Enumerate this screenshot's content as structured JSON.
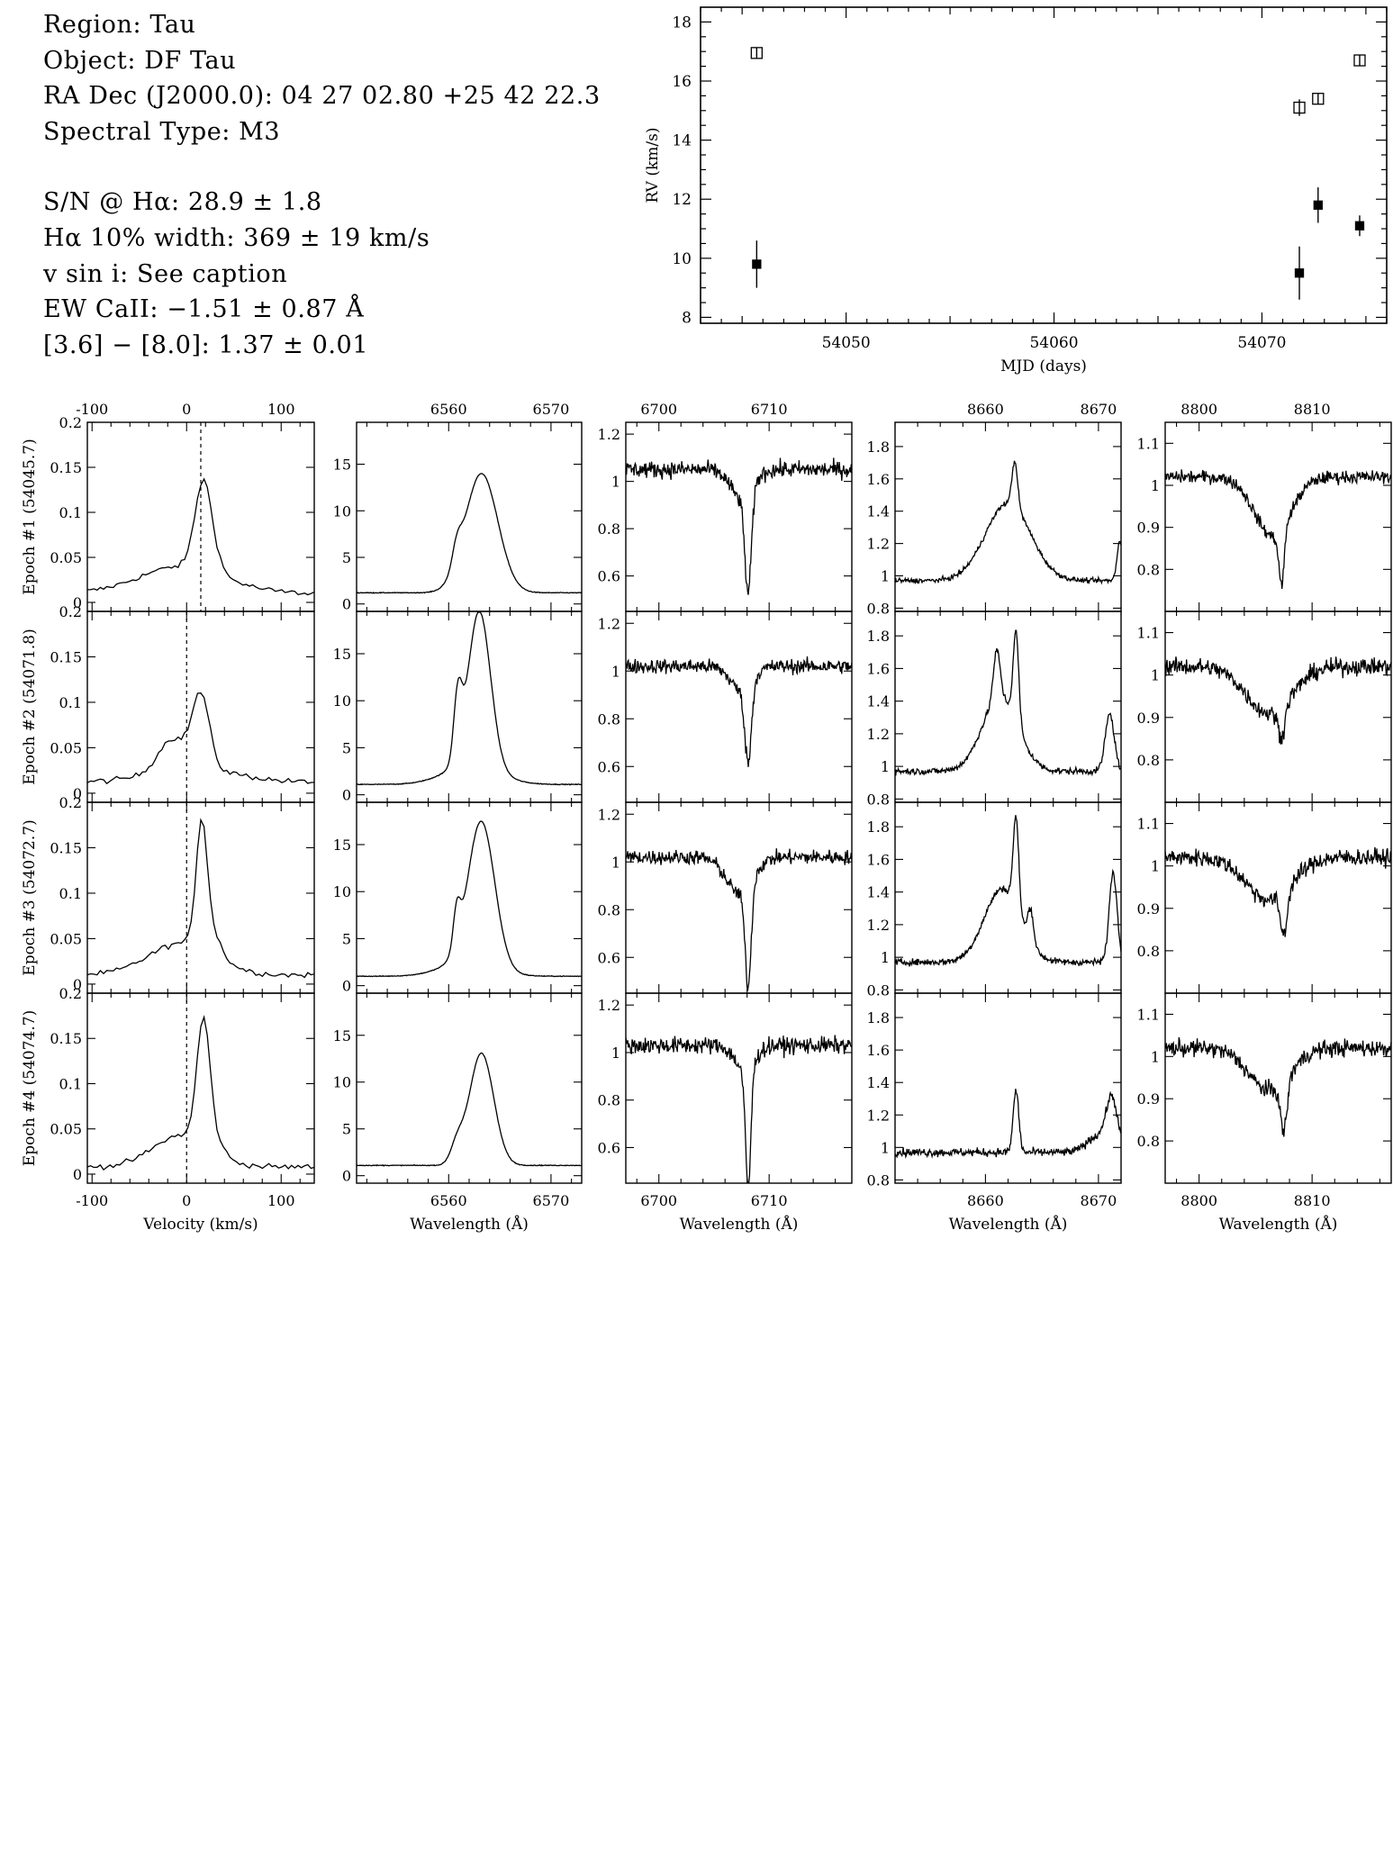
{
  "info": {
    "lines_top": [
      "Region: Tau",
      "Object: DF Tau",
      "RA Dec (J2000.0): 04 27 02.80 +25 42 22.3",
      "Spectral Type: M3"
    ],
    "lines_bottom": [
      "S/N @ Hα: 28.9 ± 1.8",
      "Hα 10% width: 369 ± 19 km/s",
      "v sin i: See caption",
      "EW CaII: −1.51 ± 0.87 Å",
      "[3.6] − [8.0]: 1.37 ± 0.01"
    ]
  },
  "chart_data": [
    {
      "type": "scatter",
      "xlabel": "MJD (days)",
      "ylabel": "RV (km/s)",
      "xlim": [
        54043,
        54076
      ],
      "ylim": [
        7.8,
        18.5
      ],
      "xticks": [
        54050,
        54060,
        54070
      ],
      "yticks": [
        8,
        10,
        12,
        14,
        16,
        18
      ],
      "series": [
        {
          "marker": "open-square",
          "x": [
            54045.7,
            54071.8,
            54072.7,
            54074.7
          ],
          "y": [
            16.95,
            15.1,
            15.4,
            16.7
          ],
          "err": [
            0.18,
            0.28,
            0.18,
            0.18
          ]
        },
        {
          "marker": "filled-square",
          "x": [
            54045.7,
            54071.8,
            54072.7,
            54074.7
          ],
          "y": [
            9.8,
            9.5,
            11.8,
            11.1
          ],
          "err": [
            0.8,
            0.9,
            0.6,
            0.35
          ]
        }
      ]
    },
    {
      "type": "line",
      "rows": [
        "Epoch #1 (54045.7)",
        "Epoch #2 (54071.8)",
        "Epoch #3 (54072.7)",
        "Epoch #4 (54074.7)"
      ],
      "panels": [
        {
          "xlabel": "Velocity (km/s)",
          "xlim": [
            -105,
            135
          ],
          "xticks": [
            -100,
            0,
            100
          ],
          "ylim": [
            -0.01,
            0.2
          ],
          "yticks": [
            0,
            0.05,
            0.1,
            0.15,
            0.2
          ],
          "ytick_labels": [
            "0",
            "0.05",
            "0.1",
            "0.15",
            "0.2"
          ],
          "dashed_x": [
            15,
            0,
            0,
            0
          ],
          "features": [
            {
              "base": 0.01,
              "noise": 0.003,
              "g": [
                [
                  -5,
                  45,
                  0.03
                ],
                [
                  18,
                  9,
                  0.1
                ],
                [
                  35,
                  6,
                  0.005
                ]
              ]
            },
            {
              "base": 0.012,
              "noise": 0.003,
              "g": [
                [
                  -15,
                  15,
                  0.035
                ],
                [
                  15,
                  9,
                  0.08
                ],
                [
                  8,
                  45,
                  0.015
                ]
              ]
            },
            {
              "base": 0.01,
              "noise": 0.003,
              "g": [
                [
                  -5,
                  35,
                  0.035
                ],
                [
                  16,
                  6,
                  0.14
                ],
                [
                  30,
                  8,
                  0.02
                ]
              ]
            },
            {
              "base": 0.008,
              "noise": 0.003,
              "g": [
                [
                  -5,
                  30,
                  0.035
                ],
                [
                  18,
                  7,
                  0.14
                ],
                [
                  35,
                  6,
                  0.01
                ]
              ]
            }
          ]
        },
        {
          "xlabel": "Wavelength (Å)",
          "xlim": [
            6551,
            6573
          ],
          "xticks": [
            6560,
            6570
          ],
          "ylim": [
            -0.8,
            19.5
          ],
          "yticks": [
            0,
            5,
            10,
            15
          ],
          "ytick_labels": [
            "0",
            "5",
            "10",
            "15"
          ],
          "rows": [
            {
              "ylim": [
                -0.8,
                19.5
              ],
              "base": 1.2,
              "noise": 0.04,
              "g": [
                [
                  6563.2,
                  1.6,
                  12.8
                ],
                [
                  6560.8,
                  0.45,
                  2.2
                ]
              ]
            },
            {
              "ylim": [
                -0.8,
                19.5
              ],
              "base": 1.1,
              "noise": 0.04,
              "g": [
                [
                  6563.0,
                  1.1,
                  16.5
                ],
                [
                  6560.9,
                  0.4,
                  6.6
                ],
                [
                  6562.2,
                  2.6,
                  2.0
                ]
              ]
            },
            {
              "ylim": [
                -0.8,
                19.5
              ],
              "base": 1.0,
              "noise": 0.04,
              "g": [
                [
                  6563.2,
                  1.3,
                  15.2
                ],
                [
                  6560.8,
                  0.35,
                  4.0
                ],
                [
                  6561.8,
                  2.5,
                  1.5
                ]
              ]
            },
            {
              "ylim": [
                -0.8,
                19.5
              ],
              "base": 1.1,
              "noise": 0.04,
              "g": [
                [
                  6563.2,
                  1.2,
                  12.0
                ],
                [
                  6560.8,
                  0.6,
                  1.9
                ]
              ]
            }
          ]
        },
        {
          "xlabel": "Wavelength (Å)",
          "xlim": [
            6697,
            6717.5
          ],
          "xticks": [
            6700,
            6710
          ],
          "yticks": [
            0.6,
            0.8,
            1,
            1.2
          ],
          "ytick_labels": [
            "0.6",
            "0.8",
            "1",
            "1.2"
          ],
          "rows": [
            {
              "ylim": [
                0.45,
                1.25
              ],
              "base": 1.05,
              "noise": 0.035,
              "g": [
                [
                  6708.1,
                  0.3,
                  -0.42
                ],
                [
                  6707.5,
                  1.0,
                  -0.12
                ]
              ]
            },
            {
              "ylim": [
                0.45,
                1.25
              ],
              "base": 1.02,
              "noise": 0.03,
              "g": [
                [
                  6708.1,
                  0.3,
                  -0.32
                ],
                [
                  6707.5,
                  1.0,
                  -0.1
                ]
              ]
            },
            {
              "ylim": [
                0.45,
                1.25
              ],
              "base": 1.02,
              "noise": 0.03,
              "g": [
                [
                  6708.1,
                  0.28,
                  -0.42
                ],
                [
                  6707.3,
                  1.2,
                  -0.15
                ]
              ]
            },
            {
              "ylim": [
                0.45,
                1.25
              ],
              "base": 1.03,
              "noise": 0.035,
              "g": [
                [
                  6708.1,
                  0.25,
                  -0.5
                ],
                [
                  6707.8,
                  0.9,
                  -0.1
                ]
              ]
            }
          ]
        },
        {
          "xlabel": "Wavelength (Å)",
          "xlim": [
            8652,
            8672
          ],
          "xticks": [
            8660,
            8670
          ],
          "yticks": [
            0.8,
            1,
            1.2,
            1.4,
            1.6,
            1.8
          ],
          "ytick_labels": [
            "0.8",
            "1",
            "1.2",
            "1.4",
            "1.6",
            "1.8"
          ],
          "rows": [
            {
              "ylim": [
                0.78,
                1.95
              ],
              "base": 0.97,
              "noise": 0.015,
              "g": [
                [
                  8662.0,
                  2.0,
                  0.48
                ],
                [
                  8662.6,
                  0.25,
                  0.28
                ],
                [
                  8671.9,
                  0.25,
                  0.25
                ]
              ]
            },
            {
              "ylim": [
                0.78,
                1.95
              ],
              "base": 0.97,
              "noise": 0.02,
              "g": [
                [
                  8661.3,
                  1.6,
                  0.45
                ],
                [
                  8661.0,
                  0.3,
                  0.3
                ],
                [
                  8662.7,
                  0.25,
                  0.55
                ],
                [
                  8671.0,
                  0.4,
                  0.35
                ]
              ]
            },
            {
              "ylim": [
                0.78,
                1.95
              ],
              "base": 0.97,
              "noise": 0.02,
              "g": [
                [
                  8661.5,
                  1.6,
                  0.45
                ],
                [
                  8662.7,
                  0.25,
                  0.55
                ],
                [
                  8664.0,
                  0.25,
                  0.2
                ],
                [
                  8671.3,
                  0.35,
                  0.55
                ]
              ]
            },
            {
              "ylim": [
                0.78,
                1.95
              ],
              "base": 0.97,
              "noise": 0.025,
              "g": [
                [
                  8662.7,
                  0.25,
                  0.38
                ],
                [
                  8671.2,
                  0.5,
                  0.3
                ],
                [
                  8670.0,
                  1.0,
                  0.1
                ]
              ]
            }
          ]
        },
        {
          "xlabel": "Wavelength (Å)",
          "xlim": [
            8797,
            8817
          ],
          "xticks": [
            8800,
            8810
          ],
          "yticks": [
            0.8,
            0.9,
            1,
            1.1
          ],
          "ytick_labels": [
            "0.8",
            "0.9",
            "1",
            "1.1"
          ],
          "rows": [
            {
              "ylim": [
                0.7,
                1.15
              ],
              "base": 1.02,
              "noise": 0.015,
              "g": [
                [
                  8806.5,
                  1.6,
                  -0.14
                ],
                [
                  8807.3,
                  0.25,
                  -0.13
                ]
              ]
            },
            {
              "ylim": [
                0.7,
                1.15
              ],
              "base": 1.02,
              "noise": 0.02,
              "g": [
                [
                  8806.2,
                  2.0,
                  -0.11
                ],
                [
                  8807.3,
                  0.3,
                  -0.07
                ]
              ]
            },
            {
              "ylim": [
                0.7,
                1.15
              ],
              "base": 1.02,
              "noise": 0.02,
              "g": [
                [
                  8806.2,
                  2.0,
                  -0.1
                ],
                [
                  8807.5,
                  0.3,
                  -0.1
                ]
              ]
            },
            {
              "ylim": [
                0.7,
                1.15
              ],
              "base": 1.02,
              "noise": 0.02,
              "g": [
                [
                  8806.2,
                  1.8,
                  -0.1
                ],
                [
                  8807.5,
                  0.3,
                  -0.12
                ]
              ]
            }
          ]
        }
      ]
    }
  ]
}
